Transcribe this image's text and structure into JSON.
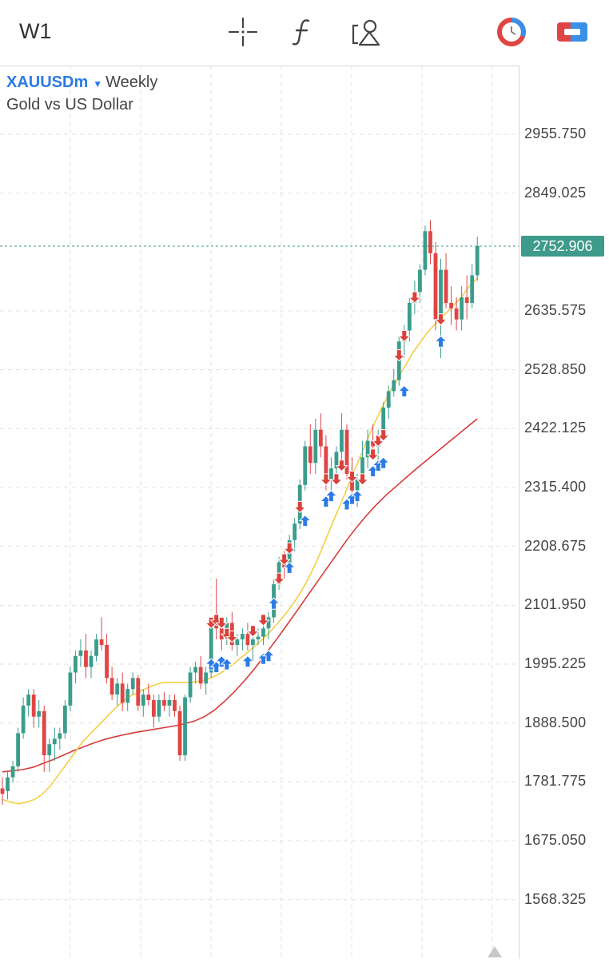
{
  "toolbar": {
    "timeframe": "W1",
    "tools": [
      {
        "name": "crosshair-icon"
      },
      {
        "name": "indicators-icon"
      },
      {
        "name": "objects-icon"
      }
    ]
  },
  "legend": {
    "symbol": "XAUUSDm",
    "period": "Weekly",
    "description": "Gold vs US Dollar"
  },
  "colors": {
    "up": "#3a9d8b",
    "down": "#e04545",
    "ma_fast": "#f2cf45",
    "ma_slow": "#d83a3a",
    "arrow_up": "#2b7be5",
    "arrow_down": "#d9413a",
    "price_tag": "#3e9a8a",
    "grid": "#e2e2e2"
  },
  "chart_data": {
    "type": "candlestick",
    "symbol": "XAUUSDm",
    "timeframe": "Weekly",
    "current_price": "2752.906",
    "current_price_value": 2752.906,
    "ylim": [
      1460,
      3080
    ],
    "y_ticks": [
      "2955.750",
      "2849.025",
      "2635.575",
      "2528.850",
      "2422.125",
      "2315.400",
      "2208.675",
      "2101.950",
      "1995.225",
      "1888.500",
      "1781.775",
      "1675.050",
      "1568.325"
    ],
    "grid_on": true,
    "candles": [
      [
        1770,
        1790,
        1740,
        1760
      ],
      [
        1765,
        1800,
        1750,
        1790
      ],
      [
        1790,
        1820,
        1780,
        1810
      ],
      [
        1810,
        1880,
        1800,
        1870
      ],
      [
        1870,
        1935,
        1860,
        1920
      ],
      [
        1920,
        1950,
        1900,
        1940
      ],
      [
        1940,
        1950,
        1880,
        1900
      ],
      [
        1900,
        1930,
        1880,
        1910
      ],
      [
        1910,
        1920,
        1800,
        1830
      ],
      [
        1830,
        1860,
        1800,
        1850
      ],
      [
        1850,
        1880,
        1820,
        1860
      ],
      [
        1860,
        1880,
        1840,
        1870
      ],
      [
        1870,
        1930,
        1860,
        1920
      ],
      [
        1920,
        1990,
        1910,
        1980
      ],
      [
        1980,
        2020,
        1960,
        2010
      ],
      [
        2010,
        2040,
        1990,
        2020
      ],
      [
        2020,
        2050,
        1970,
        1990
      ],
      [
        1990,
        2020,
        1970,
        2010
      ],
      [
        2010,
        2050,
        2000,
        2040
      ],
      [
        2040,
        2080,
        2020,
        2030
      ],
      [
        2030,
        2050,
        1960,
        1970
      ],
      [
        1970,
        1990,
        1930,
        1940
      ],
      [
        1940,
        1970,
        1920,
        1960
      ],
      [
        1960,
        1980,
        1910,
        1925
      ],
      [
        1925,
        1960,
        1910,
        1950
      ],
      [
        1950,
        1980,
        1940,
        1970
      ],
      [
        1970,
        1975,
        1910,
        1920
      ],
      [
        1920,
        1950,
        1900,
        1940
      ],
      [
        1940,
        1960,
        1920,
        1930
      ],
      [
        1930,
        1940,
        1880,
        1900
      ],
      [
        1900,
        1940,
        1890,
        1930
      ],
      [
        1930,
        1945,
        1910,
        1920
      ],
      [
        1920,
        1940,
        1900,
        1930
      ],
      [
        1930,
        1940,
        1900,
        1910
      ],
      [
        1910,
        1920,
        1820,
        1830
      ],
      [
        1830,
        1940,
        1820,
        1935
      ],
      [
        1935,
        1990,
        1925,
        1980
      ],
      [
        1980,
        2000,
        1960,
        1990
      ],
      [
        1990,
        2010,
        1950,
        1960
      ],
      [
        1960,
        1990,
        1940,
        1980
      ],
      [
        1980,
        2080,
        1970,
        2070
      ],
      [
        2070,
        2150,
        2040,
        2060
      ],
      [
        2060,
        2080,
        2020,
        2040
      ],
      [
        2040,
        2080,
        2030,
        2070
      ],
      [
        2070,
        2090,
        2020,
        2030
      ],
      [
        2030,
        2050,
        2010,
        2040
      ],
      [
        2040,
        2060,
        2020,
        2050
      ],
      [
        2050,
        2070,
        2020,
        2030
      ],
      [
        2030,
        2050,
        2000,
        2040
      ],
      [
        2040,
        2060,
        2030,
        2045
      ],
      [
        2045,
        2070,
        2030,
        2060
      ],
      [
        2060,
        2090,
        2040,
        2080
      ],
      [
        2080,
        2150,
        2070,
        2140
      ],
      [
        2140,
        2190,
        2130,
        2180
      ],
      [
        2180,
        2200,
        2150,
        2170
      ],
      [
        2170,
        2230,
        2160,
        2220
      ],
      [
        2220,
        2260,
        2200,
        2250
      ],
      [
        2250,
        2330,
        2240,
        2320
      ],
      [
        2320,
        2400,
        2310,
        2390
      ],
      [
        2390,
        2430,
        2340,
        2360
      ],
      [
        2360,
        2440,
        2340,
        2420
      ],
      [
        2420,
        2450,
        2370,
        2390
      ],
      [
        2390,
        2410,
        2310,
        2330
      ],
      [
        2330,
        2370,
        2300,
        2350
      ],
      [
        2350,
        2390,
        2320,
        2380
      ],
      [
        2380,
        2450,
        2360,
        2420
      ],
      [
        2420,
        2430,
        2330,
        2340
      ],
      [
        2340,
        2370,
        2290,
        2310
      ],
      [
        2310,
        2340,
        2280,
        2330
      ],
      [
        2330,
        2400,
        2320,
        2370
      ],
      [
        2370,
        2420,
        2350,
        2400
      ],
      [
        2400,
        2430,
        2380,
        2390
      ],
      [
        2390,
        2420,
        2360,
        2410
      ],
      [
        2410,
        2470,
        2400,
        2460
      ],
      [
        2460,
        2500,
        2440,
        2490
      ],
      [
        2490,
        2530,
        2480,
        2510
      ],
      [
        2510,
        2590,
        2500,
        2580
      ],
      [
        2580,
        2610,
        2550,
        2600
      ],
      [
        2600,
        2660,
        2580,
        2650
      ],
      [
        2650,
        2690,
        2630,
        2670
      ],
      [
        2670,
        2720,
        2650,
        2710
      ],
      [
        2710,
        2790,
        2700,
        2780
      ],
      [
        2780,
        2800,
        2720,
        2740
      ],
      [
        2740,
        2760,
        2600,
        2620
      ],
      [
        2620,
        2730,
        2550,
        2710
      ],
      [
        2710,
        2740,
        2640,
        2650
      ],
      [
        2650,
        2680,
        2610,
        2640
      ],
      [
        2640,
        2660,
        2600,
        2620
      ],
      [
        2620,
        2680,
        2600,
        2660
      ],
      [
        2660,
        2700,
        2620,
        2650
      ],
      [
        2650,
        2720,
        2640,
        2700
      ],
      [
        2700,
        2770,
        2690,
        2752.906
      ]
    ],
    "ma_fast": [
      1750,
      1745,
      1742,
      1745,
      1750,
      1760,
      1775,
      1795,
      1815,
      1835,
      1855,
      1870,
      1885,
      1900,
      1915,
      1928,
      1938,
      1945,
      1952,
      1958,
      1962,
      1962,
      1962,
      1962,
      1963,
      1966,
      1971,
      1978,
      1988,
      1999,
      2011,
      2023,
      2036,
      2050,
      2066,
      2083,
      2102,
      2124,
      2150,
      2180,
      2215,
      2250,
      2285,
      2320,
      2355,
      2390,
      2425,
      2455,
      2485,
      2510,
      2535,
      2560,
      2580,
      2600,
      2615,
      2630,
      2645,
      2660,
      2680,
      2695
    ],
    "ma_fast_x0": 0,
    "ma_slow": [
      1800,
      1802,
      1804,
      1808,
      1815,
      1822,
      1830,
      1838,
      1845,
      1852,
      1858,
      1863,
      1867,
      1871,
      1874,
      1877,
      1880,
      1883,
      1887,
      1892,
      1900,
      1912,
      1928,
      1946,
      1966,
      1988,
      2012,
      2037,
      2062,
      2088,
      2114,
      2140,
      2166,
      2192,
      2218,
      2242,
      2264,
      2284,
      2302,
      2318,
      2334,
      2350,
      2365,
      2380,
      2395,
      2410,
      2425,
      2440
    ],
    "signals_up": [
      [
        40,
        1995
      ],
      [
        41,
        1990
      ],
      [
        42,
        2000
      ],
      [
        43,
        1995
      ],
      [
        47,
        2000
      ],
      [
        50,
        2005
      ],
      [
        51,
        2010
      ],
      [
        52,
        2105
      ],
      [
        55,
        2170
      ],
      [
        58,
        2255
      ],
      [
        62,
        2290
      ],
      [
        63,
        2300
      ],
      [
        66,
        2285
      ],
      [
        67,
        2295
      ],
      [
        68,
        2300
      ],
      [
        71,
        2345
      ],
      [
        72,
        2355
      ],
      [
        73,
        2360
      ],
      [
        77,
        2490
      ],
      [
        84,
        2580
      ]
    ],
    "signals_down": [
      [
        40,
        2070
      ],
      [
        41,
        2075
      ],
      [
        42,
        2070
      ],
      [
        43,
        2050
      ],
      [
        44,
        2045
      ],
      [
        48,
        2055
      ],
      [
        50,
        2075
      ],
      [
        53,
        2150
      ],
      [
        54,
        2185
      ],
      [
        55,
        2205
      ],
      [
        57,
        2280
      ],
      [
        62,
        2330
      ],
      [
        64,
        2330
      ],
      [
        65,
        2355
      ],
      [
        67,
        2335
      ],
      [
        69,
        2330
      ],
      [
        71,
        2375
      ],
      [
        72,
        2400
      ],
      [
        73,
        2410
      ],
      [
        76,
        2555
      ],
      [
        77,
        2590
      ],
      [
        79,
        2660
      ],
      [
        84,
        2620
      ]
    ]
  }
}
